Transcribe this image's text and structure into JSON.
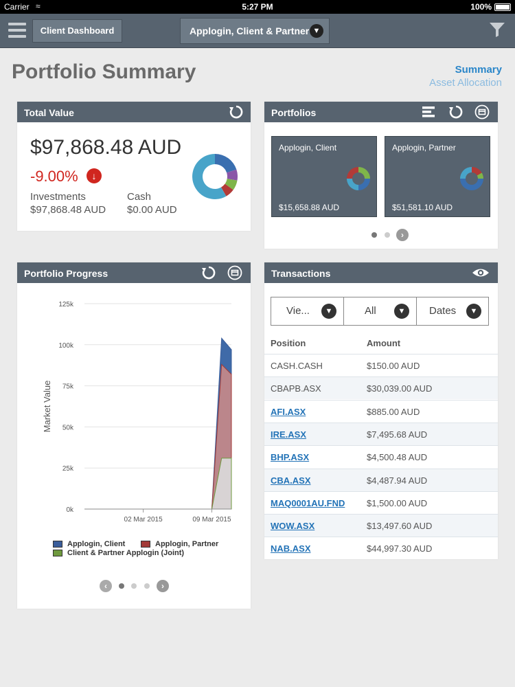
{
  "status_bar": {
    "carrier": "Carrier",
    "time": "5:27 PM",
    "battery": "100%"
  },
  "topbar": {
    "dashboard_label": "Client Dashboard",
    "client_selector": "Applogin, Client & Partner"
  },
  "page": {
    "title": "Portfolio Summary",
    "view_summary": "Summary",
    "view_asset": "Asset Allocation"
  },
  "total_value": {
    "title": "Total Value",
    "amount": "$97,868.48 AUD",
    "change": "-9.00%",
    "investments_label": "Investments",
    "investments_value": "$97,868.48 AUD",
    "cash_label": "Cash",
    "cash_value": "$0.00 AUD",
    "donut_colors": [
      "#3a6fb0",
      "#48a4c9",
      "#7fb54a",
      "#b23b38",
      "#e08a2e",
      "#8a56a8"
    ]
  },
  "portfolios": {
    "title": "Portfolios",
    "tiles": [
      {
        "name": "Applogin, Client",
        "amount": "$15,658.88 AUD"
      },
      {
        "name": "Applogin, Partner",
        "amount": "$51,581.10 AUD"
      }
    ]
  },
  "progress": {
    "title": "Portfolio Progress",
    "legend": [
      "Applogin, Client",
      "Applogin, Partner",
      "Client & Partner Applogin (Joint)"
    ]
  },
  "chart_data": {
    "type": "area",
    "title": "",
    "ylabel": "Market Value",
    "ylim": [
      0,
      125000
    ],
    "yticks": [
      "125k",
      "100k",
      "75k",
      "50k",
      "25k",
      "0k"
    ],
    "xticks": [
      "02 Mar 2015",
      "09 Mar 2015"
    ],
    "x": [
      "2015-02-24",
      "2015-03-09",
      "2015-03-10",
      "2015-03-11"
    ],
    "series": [
      {
        "name": "Applogin, Client",
        "color": "#3a5d9a",
        "values": [
          0,
          0,
          104000,
          97000
        ]
      },
      {
        "name": "Applogin, Partner",
        "color": "#a23a37",
        "values": [
          0,
          0,
          88000,
          82000
        ]
      },
      {
        "name": "Client & Partner Applogin (Joint)",
        "color": "#6f9a3f",
        "values": [
          0,
          0,
          31000,
          31000
        ]
      }
    ]
  },
  "transactions": {
    "title": "Transactions",
    "filters": [
      "Vie...",
      "All",
      "Dates"
    ],
    "col_position": "Position",
    "col_amount": "Amount",
    "rows": [
      {
        "position": "CASH.CASH",
        "amount": "$150.00 AUD"
      },
      {
        "position": "CBAPB.ASX",
        "amount": "$30,039.00 AUD"
      },
      {
        "position": "AFI.ASX",
        "amount": "$885.00 AUD"
      },
      {
        "position": "IRE.ASX",
        "amount": "$7,495.68 AUD"
      },
      {
        "position": "BHP.ASX",
        "amount": "$4,500.48 AUD"
      },
      {
        "position": "CBA.ASX",
        "amount": "$4,487.94 AUD"
      },
      {
        "position": "MAQ0001AU.FND",
        "amount": "$1,500.00 AUD"
      },
      {
        "position": "WOW.ASX",
        "amount": "$13,497.60 AUD"
      },
      {
        "position": "NAB.ASX",
        "amount": "$44,997.30 AUD"
      }
    ]
  }
}
